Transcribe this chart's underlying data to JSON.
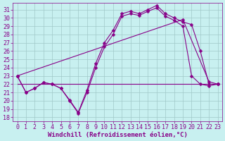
{
  "bg_color": "#c8f0f0",
  "line_color": "#880088",
  "grid_color": "#b8d8d8",
  "xlabel": "Windchill (Refroidissement éolien,°C)",
  "xlim": [
    -0.5,
    23.5
  ],
  "ylim": [
    17.5,
    31.8
  ],
  "yticks": [
    18,
    19,
    20,
    21,
    22,
    23,
    24,
    25,
    26,
    27,
    28,
    29,
    30,
    31
  ],
  "xticks": [
    0,
    1,
    2,
    3,
    4,
    5,
    6,
    7,
    8,
    9,
    10,
    11,
    12,
    13,
    14,
    15,
    16,
    17,
    18,
    19,
    20,
    21,
    22,
    23
  ],
  "line1_x": [
    0,
    1,
    2,
    3,
    4,
    5,
    6,
    7,
    8,
    9,
    10,
    11,
    12,
    13,
    14,
    15,
    16,
    17,
    18,
    19,
    20,
    21,
    22,
    23
  ],
  "line1_y": [
    23,
    21,
    21.5,
    22.2,
    22,
    21.5,
    20,
    18.5,
    21,
    24,
    26.5,
    28,
    30.2,
    30.5,
    30.3,
    30.8,
    31.2,
    30.2,
    29.7,
    29.0,
    23.0,
    22.0,
    21.8,
    22.0
  ],
  "line2_x": [
    0,
    1,
    2,
    3,
    4,
    5,
    6,
    7,
    8,
    9,
    10,
    11,
    12,
    13,
    14,
    15,
    16,
    17,
    18,
    19,
    20,
    21,
    22,
    23
  ],
  "line2_y": [
    23,
    21,
    21.5,
    22.2,
    22,
    21.5,
    20.1,
    18.6,
    21.3,
    24.5,
    27.0,
    28.5,
    30.5,
    30.8,
    30.5,
    31.0,
    31.5,
    30.5,
    30.0,
    29.5,
    29.2,
    26.0,
    22.0,
    22.0
  ],
  "line3_x": [
    0,
    19,
    22,
    23
  ],
  "line3_y": [
    23,
    29.8,
    22.3,
    22.0
  ],
  "line4_x": [
    0,
    20,
    23
  ],
  "line4_y": [
    22.0,
    22.0,
    22.0
  ],
  "font_size": 6.5,
  "tick_font_size": 6.0
}
